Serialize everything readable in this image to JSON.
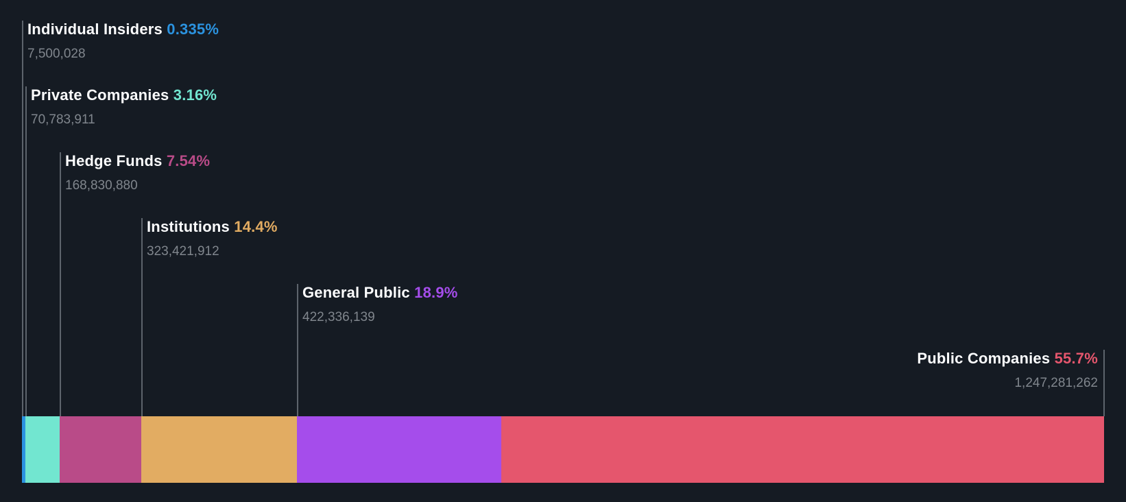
{
  "chart_data": {
    "type": "bar",
    "variant": "horizontal-stacked-single-bar",
    "title": "",
    "legend_position": "labels-with-leader-lines",
    "grid": false,
    "background_color": "#151b23",
    "leader_line_color": "#5d646c",
    "label_text_color": "#fbfcfd",
    "value_text_color": "#80868d",
    "total_percent": 100.035,
    "segments": [
      {
        "label": "Individual Insiders",
        "percent_text": "0.335%",
        "percent": 0.335,
        "shares": "7,500,028",
        "color": "#2b93e0"
      },
      {
        "label": "Private Companies",
        "percent_text": "3.16%",
        "percent": 3.16,
        "shares": "70,783,911",
        "color": "#72e6d0"
      },
      {
        "label": "Hedge Funds",
        "percent_text": "7.54%",
        "percent": 7.54,
        "shares": "168,830,880",
        "color": "#b94b88"
      },
      {
        "label": "Institutions",
        "percent_text": "14.4%",
        "percent": 14.4,
        "shares": "323,421,912",
        "color": "#e2ac62"
      },
      {
        "label": "General Public",
        "percent_text": "18.9%",
        "percent": 18.9,
        "shares": "422,336,139",
        "color": "#a54deb"
      },
      {
        "label": "Public Companies",
        "percent_text": "55.7%",
        "percent": 55.7,
        "shares": "1,247,281,262",
        "color": "#e5566d"
      }
    ]
  }
}
